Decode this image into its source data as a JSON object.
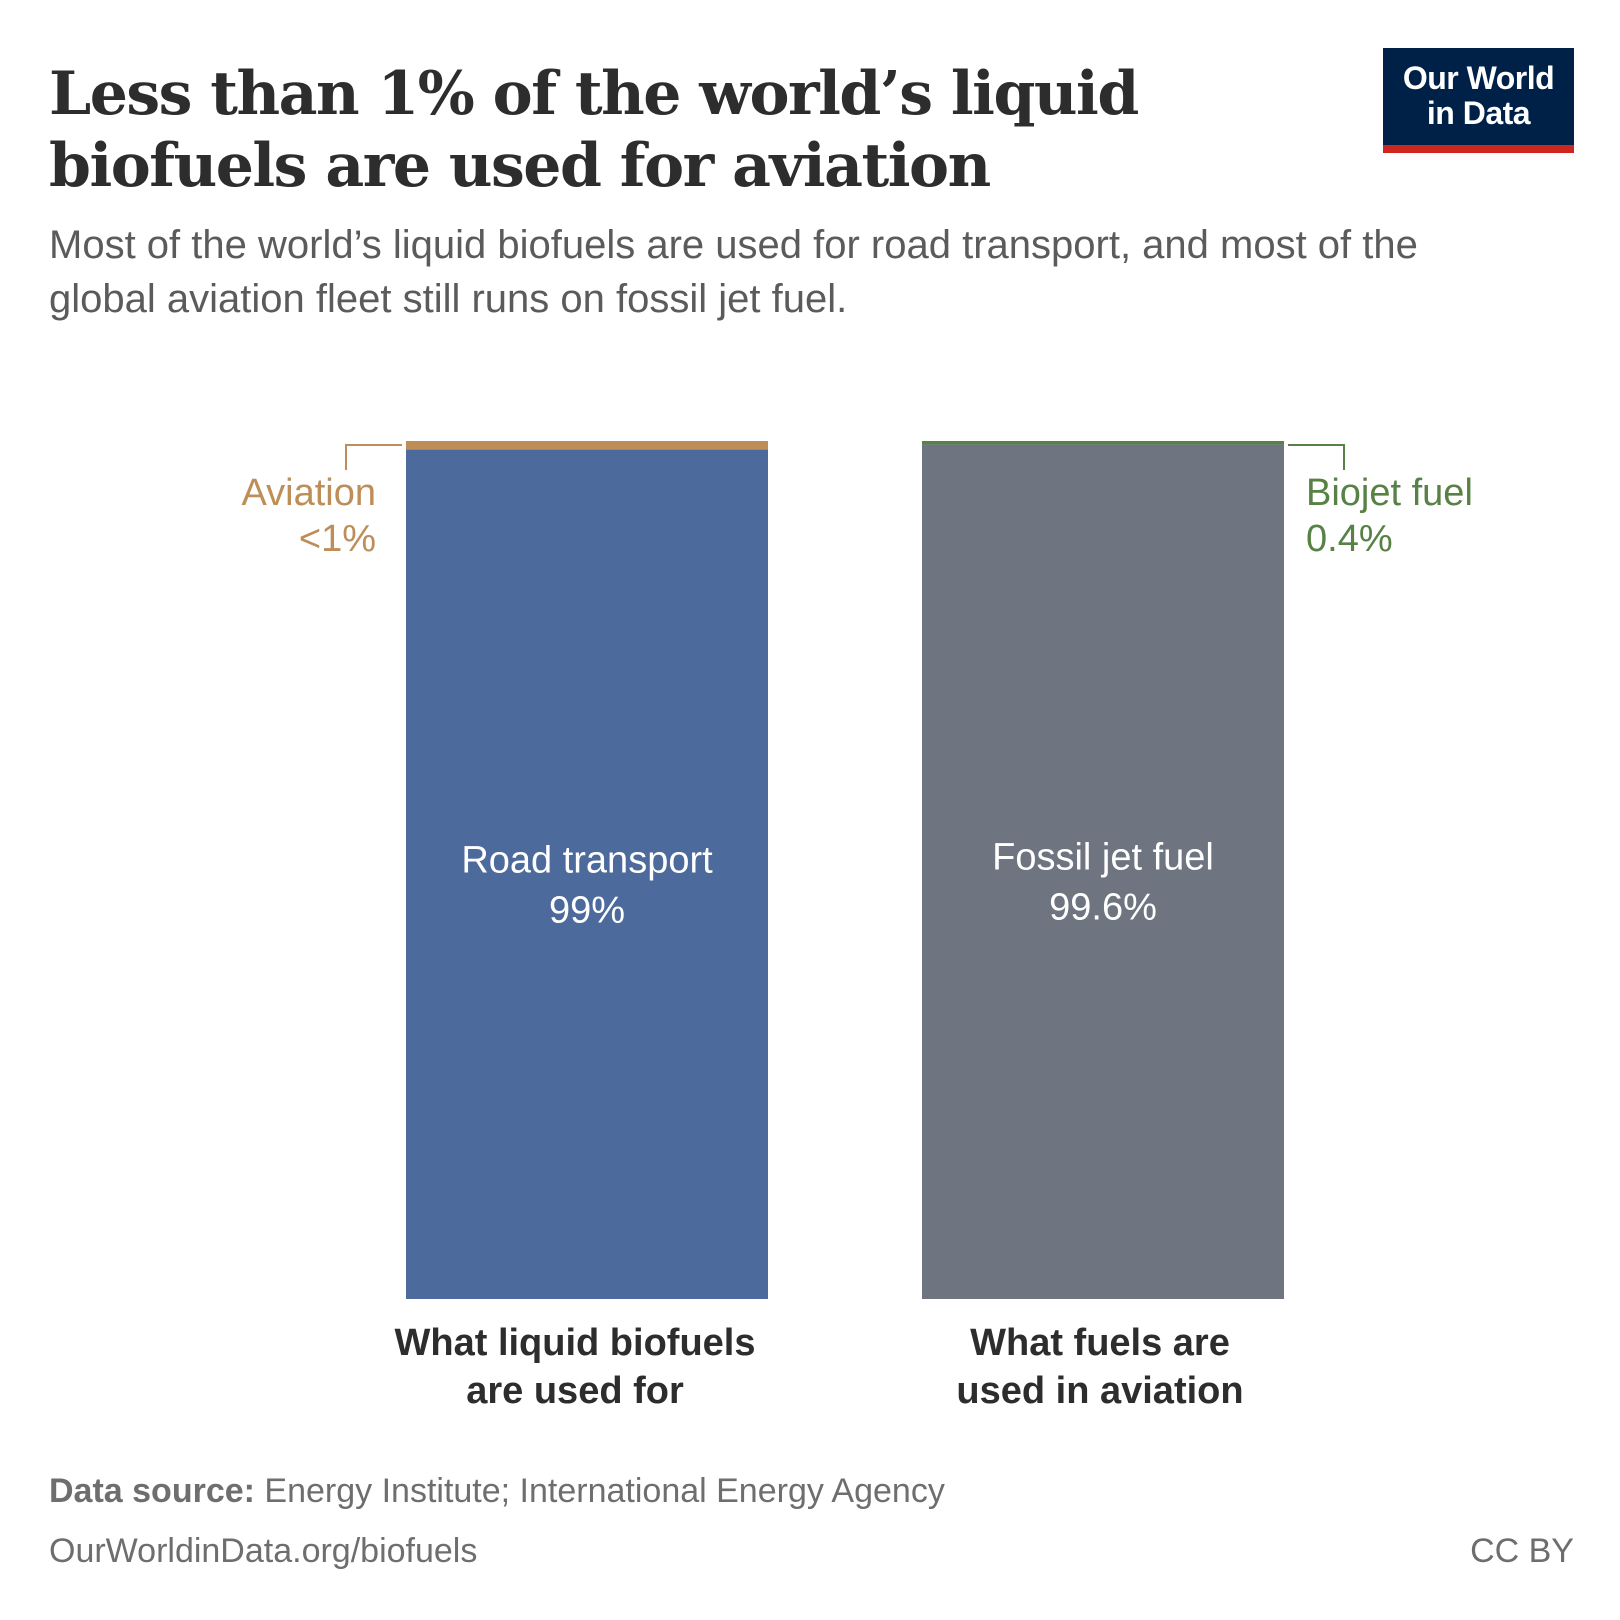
{
  "header": {
    "title": "Less than 1% of the world’s liquid biofuels are used for aviation",
    "subtitle": "Most of the world’s liquid biofuels are used for road transport, and most of the global aviation fleet still runs on fossil jet fuel.",
    "logo": "Our World in Data",
    "logo_line1": "Our World",
    "logo_line2": "in Data"
  },
  "chart_data": {
    "type": "bar",
    "stacked": true,
    "normalized": true,
    "categories": [
      "What liquid biofuels are used for",
      "What fuels are used in aviation"
    ],
    "category_lines": [
      [
        "What liquid biofuels",
        "are used for"
      ],
      [
        "What fuels are",
        "used in aviation"
      ]
    ],
    "ylim": [
      0,
      100
    ],
    "bars": [
      {
        "segments": [
          {
            "name": "Road transport",
            "value": 99,
            "label": "99%",
            "color": "#4c6a9c",
            "position": "inside"
          },
          {
            "name": "Aviation",
            "value": 1,
            "label": "<1%",
            "color": "#bd8e58",
            "position": "left"
          }
        ]
      },
      {
        "segments": [
          {
            "name": "Fossil jet fuel",
            "value": 99.6,
            "label": "99.6%",
            "color": "#6e7480",
            "position": "inside"
          },
          {
            "name": "Biojet fuel",
            "value": 0.4,
            "label": "0.4%",
            "color": "#578145",
            "position": "right"
          }
        ]
      }
    ]
  },
  "footer": {
    "source_label": "Data source:",
    "source_text": "Energy Institute; International Energy Agency",
    "url": "OurWorldinData.org/biofuels",
    "license": "CC BY"
  }
}
